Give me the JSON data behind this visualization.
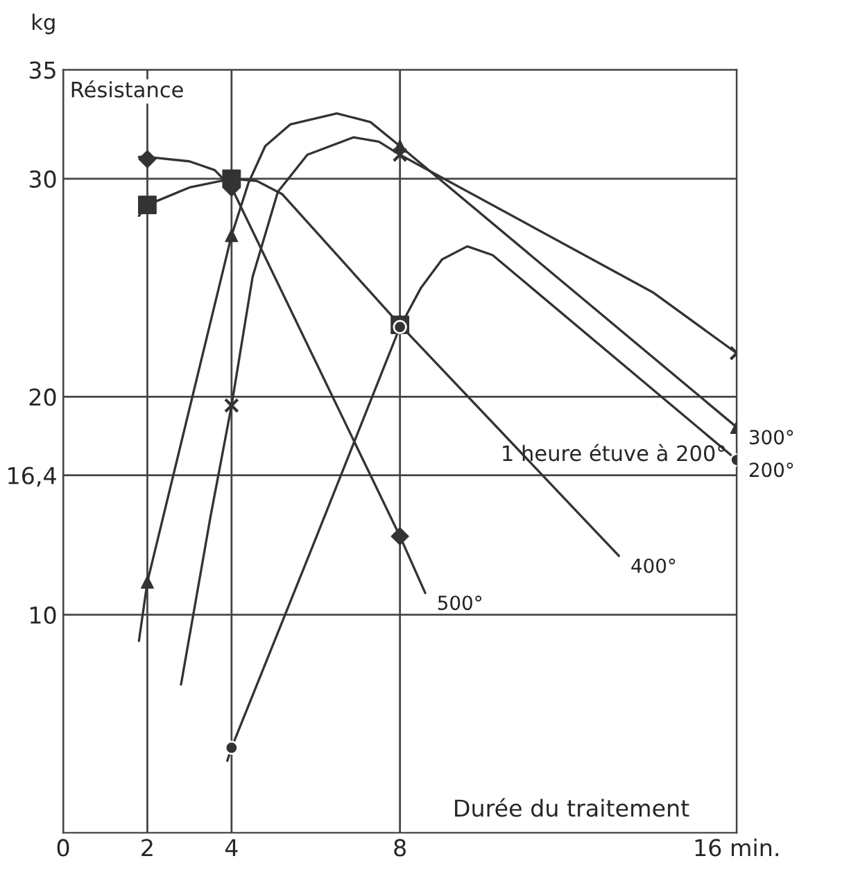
{
  "chart_data": {
    "type": "line",
    "xlabel": "Durée du traitement",
    "ylabel": "Résistance",
    "annotations": [
      "kg",
      "1 heure étuve à 200°"
    ],
    "xlim": [
      0,
      16
    ],
    "ylim": [
      0,
      35
    ],
    "xticks": [
      0,
      2,
      4,
      8,
      {
        "value": 16,
        "label": "16 min."
      }
    ],
    "yticks": [
      10,
      {
        "value": 16.4,
        "label": "16,4"
      },
      20,
      30,
      35
    ],
    "grid": true,
    "series": [
      {
        "name": "500°",
        "color": "#333333",
        "line_style": "solid",
        "x": [
          1.8,
          2,
          3,
          3.6,
          4,
          6,
          8,
          8.6
        ],
        "values": [
          31.0,
          31.0,
          30.8,
          30.4,
          29.6,
          21.6,
          13.6,
          11.0
        ]
      },
      {
        "type": "scatter",
        "marker": "diamond",
        "color": "#333333",
        "x": [
          2,
          4,
          8
        ],
        "values": [
          30.9,
          29.6,
          13.6
        ]
      },
      {
        "name": "400°",
        "color": "#333333",
        "line_style": "solid",
        "x": [
          1.8,
          2,
          3,
          4,
          4.6,
          5.2,
          8,
          13.2
        ],
        "values": [
          28.3,
          28.8,
          29.6,
          30.0,
          29.9,
          29.3,
          23.3,
          12.7
        ]
      },
      {
        "type": "scatter",
        "marker": "square",
        "color": "#333333",
        "x": [
          2,
          4,
          8
        ],
        "values": [
          28.8,
          30.0,
          23.3
        ]
      },
      {
        "name": "300°",
        "color": "#333333",
        "line_style": "solid",
        "x": [
          1.8,
          2,
          4,
          4.4,
          4.8,
          5.4,
          6.5,
          7.3,
          8,
          16
        ],
        "values": [
          8.8,
          11.5,
          27.4,
          29.8,
          31.5,
          32.5,
          33.0,
          32.6,
          31.5,
          18.6
        ]
      },
      {
        "type": "scatter",
        "marker": "triangle",
        "color": "#333333",
        "x": [
          2,
          4,
          8,
          16
        ],
        "values": [
          11.5,
          27.4,
          31.5,
          18.6
        ]
      },
      {
        "color": "#333333",
        "line_style": "solid",
        "x": [
          2.8,
          3.5,
          4,
          4.5,
          5.1,
          5.8,
          6.9,
          7.5,
          8,
          14,
          16
        ],
        "values": [
          6.8,
          14.5,
          19.6,
          25.5,
          29.4,
          31.1,
          31.9,
          31.7,
          31.1,
          24.8,
          22.0
        ]
      },
      {
        "type": "scatter",
        "marker": "cross",
        "color": "#333333",
        "x": [
          4,
          8,
          16
        ],
        "values": [
          19.6,
          31.1,
          22.0
        ]
      },
      {
        "name": "200°",
        "color": "#333333",
        "line_style": "solid",
        "x": [
          3.9,
          4,
          6,
          8,
          8.5,
          9.0,
          9.6,
          10.2,
          16
        ],
        "values": [
          3.3,
          3.9,
          13.5,
          23.2,
          25.0,
          26.3,
          26.9,
          26.5,
          17.1
        ]
      },
      {
        "type": "scatter",
        "marker": "circle",
        "color": "#333333",
        "x": [
          4,
          8,
          16
        ],
        "values": [
          3.9,
          23.2,
          17.1
        ]
      }
    ]
  }
}
